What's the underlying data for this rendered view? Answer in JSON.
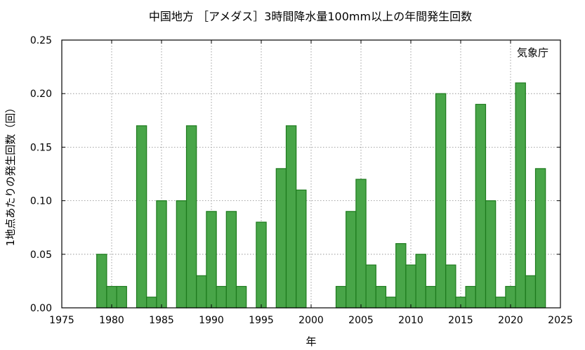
{
  "chart_data": {
    "type": "bar",
    "title": "中国地方 ［アメダス］3時間降水量100mm以上の年間発生回数",
    "xlabel": "年",
    "ylabel": "1地点あたりの発生回数（回）",
    "credit": "気象庁",
    "xlim": [
      1975,
      2025
    ],
    "ylim": [
      0,
      0.25
    ],
    "xticks": [
      1975,
      1980,
      1985,
      1990,
      1995,
      2000,
      2005,
      2010,
      2015,
      2020,
      2025
    ],
    "yticks": [
      0.0,
      0.05,
      0.1,
      0.15,
      0.2,
      0.25
    ],
    "ytick_labels": [
      "0.00",
      "0.05",
      "0.10",
      "0.15",
      "0.20",
      "0.25"
    ],
    "grid": true,
    "colors": {
      "bar_fill": "#48a548",
      "bar_edge": "#1d7a1d"
    },
    "x": [
      1979,
      1980,
      1981,
      1982,
      1983,
      1984,
      1985,
      1986,
      1987,
      1988,
      1989,
      1990,
      1991,
      1992,
      1993,
      1994,
      1995,
      1996,
      1997,
      1998,
      1999,
      2000,
      2001,
      2002,
      2003,
      2004,
      2005,
      2006,
      2007,
      2008,
      2009,
      2010,
      2011,
      2012,
      2013,
      2014,
      2015,
      2016,
      2017,
      2018,
      2019,
      2020,
      2021,
      2022,
      2023
    ],
    "values": [
      0.05,
      0.02,
      0.02,
      0,
      0.17,
      0.01,
      0.1,
      0,
      0.1,
      0.17,
      0.03,
      0.09,
      0.02,
      0.09,
      0.02,
      0,
      0.08,
      0,
      0.13,
      0.17,
      0.11,
      0,
      0,
      0,
      0.02,
      0.09,
      0.12,
      0.04,
      0.02,
      0.01,
      0.06,
      0.04,
      0.05,
      0.02,
      0.2,
      0.04,
      0.01,
      0.02,
      0.19,
      0.1,
      0.01,
      0.02,
      0.21,
      0.03,
      0.13
    ]
  }
}
